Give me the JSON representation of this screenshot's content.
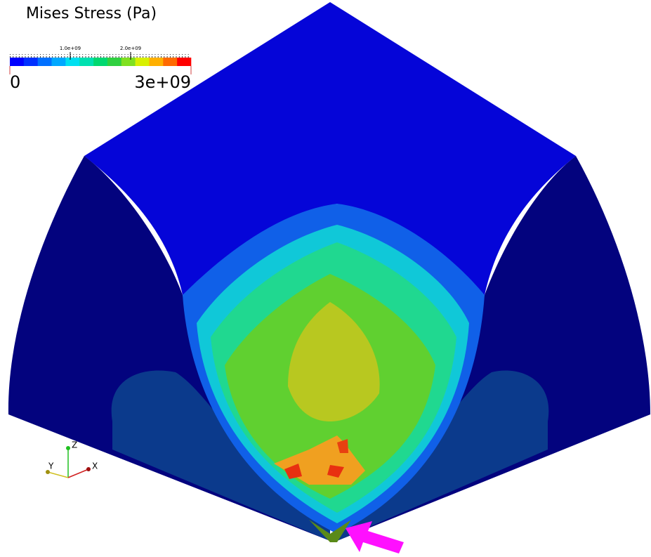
{
  "scalar_bar": {
    "title": "Mises Stress (Pa)",
    "range": [
      0,
      3000000000
    ],
    "ticks": [
      0,
      {
        "value": 3000000000,
        "label": "3e+09"
      }
    ],
    "minor_labels": [
      {
        "value": 1000000000,
        "label": "1.0e+09"
      },
      {
        "value": 2000000000,
        "label": "2.0e+09"
      }
    ],
    "colors": [
      "#0000ff",
      "#0030ff",
      "#0070ff",
      "#00a8ff",
      "#00e0f0",
      "#00e0b0",
      "#00d870",
      "#30d040",
      "#80e020",
      "#d8f000",
      "#ffb000",
      "#ff6a00",
      "#ff0000"
    ]
  },
  "axes": {
    "z": "Z",
    "y": "Y",
    "x": "X"
  }
}
